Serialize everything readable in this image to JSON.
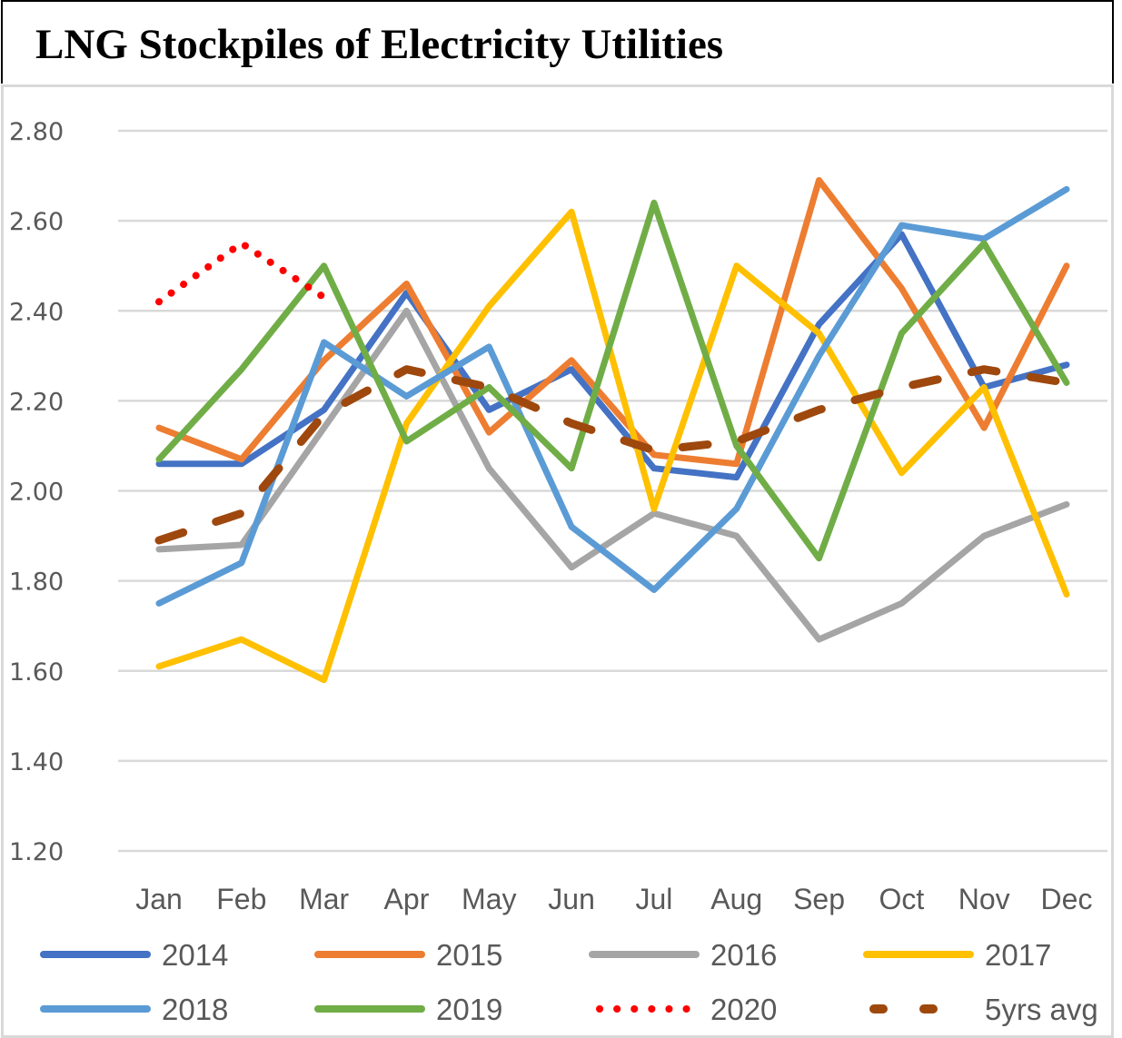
{
  "chart_data": {
    "type": "line",
    "title": "LNG Stockpiles of Electricity Utilities",
    "xlabel": "",
    "ylabel": "",
    "ylim": [
      1.2,
      2.8
    ],
    "yticks": [
      "2.80",
      "2.60",
      "2.40",
      "2.20",
      "2.00",
      "1.80",
      "1.60",
      "1.40",
      "1.20"
    ],
    "ytick_values": [
      2.8,
      2.6,
      2.4,
      2.2,
      2.0,
      1.8,
      1.6,
      1.4,
      1.2
    ],
    "grid": true,
    "legend_position": "bottom",
    "categories": [
      "Jan",
      "Feb",
      "Mar",
      "Apr",
      "May",
      "Jun",
      "Jul",
      "Aug",
      "Sep",
      "Oct",
      "Nov",
      "Dec"
    ],
    "series": [
      {
        "name": "2014",
        "color": "#4472c4",
        "style": "solid",
        "values": [
          2.06,
          2.06,
          2.18,
          2.44,
          2.18,
          2.27,
          2.05,
          2.03,
          2.37,
          2.57,
          2.23,
          2.28
        ]
      },
      {
        "name": "2015",
        "color": "#ed7d31",
        "style": "solid",
        "values": [
          2.14,
          2.07,
          2.29,
          2.46,
          2.13,
          2.29,
          2.08,
          2.06,
          2.69,
          2.45,
          2.14,
          2.5
        ]
      },
      {
        "name": "2016",
        "color": "#a5a5a5",
        "style": "solid",
        "values": [
          1.87,
          1.88,
          2.14,
          2.4,
          2.05,
          1.83,
          1.95,
          1.9,
          1.67,
          1.75,
          1.9,
          1.97
        ]
      },
      {
        "name": "2017",
        "color": "#ffc000",
        "style": "solid",
        "values": [
          1.61,
          1.67,
          1.58,
          2.15,
          2.41,
          2.62,
          1.96,
          2.5,
          2.35,
          2.04,
          2.23,
          1.77
        ]
      },
      {
        "name": "2018",
        "color": "#5b9bd5",
        "style": "solid",
        "values": [
          1.75,
          1.84,
          2.33,
          2.21,
          2.32,
          1.92,
          1.78,
          1.96,
          2.3,
          2.59,
          2.56,
          2.67
        ]
      },
      {
        "name": "2019",
        "color": "#70ad47",
        "style": "solid",
        "values": [
          2.07,
          2.27,
          2.5,
          2.11,
          2.23,
          2.05,
          2.64,
          2.1,
          1.85,
          2.35,
          2.55,
          2.24
        ]
      },
      {
        "name": "2020",
        "color": "#ff0000",
        "style": "dotted",
        "values": [
          2.42,
          2.55,
          2.43,
          null,
          null,
          null,
          null,
          null,
          null,
          null,
          null,
          null
        ]
      },
      {
        "name": "5yrs avg",
        "color": "#9e480e",
        "style": "dashed",
        "values": [
          1.89,
          1.95,
          2.17,
          2.27,
          2.23,
          2.15,
          2.09,
          2.11,
          2.18,
          2.23,
          2.27,
          2.24
        ]
      }
    ]
  }
}
